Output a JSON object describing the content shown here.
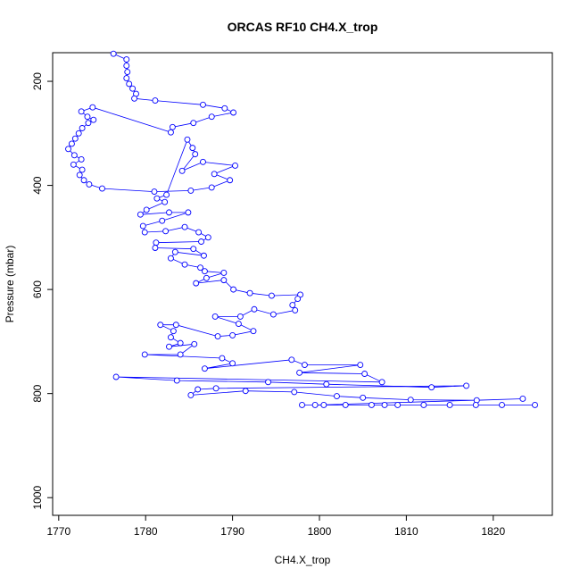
{
  "chart_data": {
    "type": "scatter-line",
    "title": "ORCAS RF10 CH4.X_trop",
    "x_label": "CH4.X_trop",
    "y_label": "Pressure (mbar)",
    "color": "#0000ff",
    "xlim": [
      1769.3,
      1826.8
    ],
    "ylim": [
      1034,
      145
    ],
    "xticks": [
      1770,
      1780,
      1790,
      1800,
      1810,
      1820
    ],
    "yticks": [
      200,
      400,
      600,
      800,
      1000
    ],
    "x": [
      1776.3,
      1777.8,
      1777.8,
      1777.9,
      1777.8,
      1778.1,
      1778.5,
      1778.9,
      1778.7,
      1781.1,
      1786.6,
      1789.1,
      1790.1,
      1787.6,
      1785.5,
      1783.1,
      1782.9,
      1773.9,
      1772.6,
      1773.3,
      1774,
      1773.4,
      1772.7,
      1772.3,
      1771.9,
      1771.5,
      1771.1,
      1771.8,
      1772.6,
      1771.7,
      1772.7,
      1772.4,
      1772.9,
      1773.5,
      1775,
      1781,
      1785.2,
      1787.6,
      1789.7,
      1787.9,
      1790.3,
      1786.6,
      1784.2,
      1785.7,
      1785.4,
      1784.8,
      1782.4,
      1781.3,
      1782.2,
      1780.1,
      1779.4,
      1782.7,
      1784.9,
      1781.9,
      1779.7,
      1779.9,
      1782.3,
      1784.5,
      1786.1,
      1787.2,
      1786.4,
      1781.2,
      1781.1,
      1785.5,
      1786.7,
      1783.4,
      1782.9,
      1784.5,
      1786.3,
      1786.8,
      1789,
      1787,
      1785.8,
      1789,
      1790.1,
      1792,
      1794.5,
      1797.8,
      1797.5,
      1796.9,
      1797.2,
      1794.7,
      1792.5,
      1790.9,
      1788,
      1790.7,
      1792.4,
      1790,
      1788.3,
      1783.5,
      1781.7,
      1783.2,
      1782.9,
      1784,
      1782.7,
      1785.6,
      1784,
      1779.9,
      1788.8,
      1790,
      1786.8,
      1796.8,
      1798.3,
      1804.7,
      1797.7,
      1805.2,
      1807.2,
      1776.6,
      1783.6,
      1794.1,
      1800.8,
      1812.9,
      1816.9,
      1788.1,
      1786,
      1785.2,
      1791.5,
      1797.1,
      1802,
      1805,
      1810.5,
      1818.1,
      1823.4,
      1799.5,
      1803,
      1806,
      1809,
      1812,
      1815,
      1818,
      1821,
      1824.8,
      1798,
      1800.5,
      1807.5
    ],
    "values": [
      147,
      158,
      170,
      182,
      194,
      205,
      214,
      224,
      233,
      237,
      245,
      252,
      260,
      268,
      280,
      288,
      298,
      250,
      258,
      268,
      274,
      280,
      290,
      300,
      310,
      320,
      330,
      342,
      350,
      360,
      370,
      380,
      390,
      398,
      406,
      412,
      410,
      404,
      390,
      378,
      362,
      355,
      372,
      340,
      328,
      312,
      418,
      425,
      432,
      447,
      456,
      452,
      452,
      468,
      478,
      490,
      488,
      480,
      490,
      500,
      508,
      510,
      520,
      522,
      535,
      528,
      540,
      552,
      558,
      565,
      568,
      578,
      588,
      582,
      600,
      607,
      612,
      610,
      618,
      630,
      640,
      648,
      638,
      652,
      652,
      666,
      680,
      688,
      690,
      668,
      668,
      680,
      692,
      703,
      710,
      705,
      725,
      725,
      732,
      742,
      752,
      735,
      745,
      745,
      760,
      762,
      778,
      768,
      775,
      778,
      782,
      788,
      785,
      790,
      792,
      803,
      795,
      797,
      805,
      808,
      812,
      813,
      810,
      822,
      822,
      822,
      822,
      822,
      822,
      822,
      822,
      822,
      822,
      822,
      822
    ]
  }
}
